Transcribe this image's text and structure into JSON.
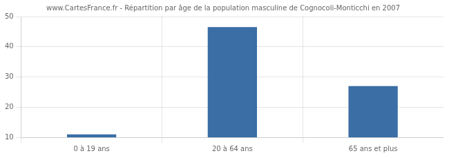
{
  "chart_data": {
    "type": "bar",
    "title": "www.CartesFrance.fr - Répartition par âge de la population masculine de Cognocoli-Monticchi en 2007",
    "categories": [
      "0 à 19 ans",
      "20 à 64 ans",
      "65 ans et plus"
    ],
    "values": [
      11,
      46.5,
      27
    ],
    "color": "#3A6EA5",
    "ylim": [
      10,
      50
    ],
    "yticks": [
      10,
      20,
      30,
      40,
      50
    ],
    "grid": true
  }
}
